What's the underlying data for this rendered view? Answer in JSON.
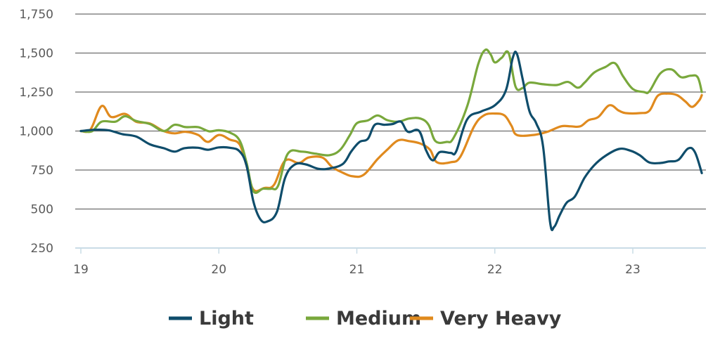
{
  "chart_data": {
    "type": "line",
    "title": "",
    "xlabel": "",
    "ylabel": "",
    "xlim": [
      19,
      23.52
    ],
    "ylim": [
      250,
      1750
    ],
    "yticks": [
      {
        "value": 1750,
        "label": "1,750"
      },
      {
        "value": 1500,
        "label": "1,500"
      },
      {
        "value": 1250,
        "label": "1,250"
      },
      {
        "value": 1000,
        "label": "1,000"
      },
      {
        "value": 750,
        "label": "750"
      },
      {
        "value": 500,
        "label": "500"
      },
      {
        "value": 250,
        "label": "250"
      }
    ],
    "xticks": [
      {
        "value": 19,
        "label": "19"
      },
      {
        "value": 20,
        "label": "20"
      },
      {
        "value": 21,
        "label": "21"
      },
      {
        "value": 22,
        "label": "22"
      },
      {
        "value": 23,
        "label": "23"
      }
    ],
    "grid": true,
    "legend_position": "bottom",
    "series": [
      {
        "name": "Light",
        "color": "#0f4d6b",
        "points": [
          [
            19.0,
            1000
          ],
          [
            19.1,
            1008
          ],
          [
            19.2,
            1005
          ],
          [
            19.3,
            980
          ],
          [
            19.4,
            965
          ],
          [
            19.5,
            915
          ],
          [
            19.6,
            890
          ],
          [
            19.68,
            868
          ],
          [
            19.75,
            890
          ],
          [
            19.85,
            893
          ],
          [
            19.92,
            880
          ],
          [
            20.0,
            895
          ],
          [
            20.08,
            893
          ],
          [
            20.15,
            870
          ],
          [
            20.2,
            780
          ],
          [
            20.25,
            550
          ],
          [
            20.3,
            435
          ],
          [
            20.35,
            420
          ],
          [
            20.42,
            480
          ],
          [
            20.48,
            700
          ],
          [
            20.55,
            785
          ],
          [
            20.63,
            786
          ],
          [
            20.72,
            758
          ],
          [
            20.8,
            760
          ],
          [
            20.9,
            790
          ],
          [
            20.96,
            870
          ],
          [
            21.02,
            930
          ],
          [
            21.08,
            950
          ],
          [
            21.13,
            1040
          ],
          [
            21.2,
            1040
          ],
          [
            21.26,
            1045
          ],
          [
            21.32,
            1060
          ],
          [
            21.37,
            995
          ],
          [
            21.45,
            1002
          ],
          [
            21.5,
            880
          ],
          [
            21.55,
            812
          ],
          [
            21.6,
            865
          ],
          [
            21.68,
            860
          ],
          [
            21.72,
            870
          ],
          [
            21.8,
            1075
          ],
          [
            21.9,
            1125
          ],
          [
            22.0,
            1165
          ],
          [
            22.08,
            1260
          ],
          [
            22.13,
            1470
          ],
          [
            22.16,
            1495
          ],
          [
            22.2,
            1340
          ],
          [
            22.25,
            1130
          ],
          [
            22.3,
            1050
          ],
          [
            22.35,
            900
          ],
          [
            22.4,
            420
          ],
          [
            22.43,
            385
          ],
          [
            22.47,
            460
          ],
          [
            22.52,
            540
          ],
          [
            22.58,
            580
          ],
          [
            22.65,
            700
          ],
          [
            22.72,
            780
          ],
          [
            22.8,
            840
          ],
          [
            22.9,
            885
          ],
          [
            22.98,
            875
          ],
          [
            23.05,
            845
          ],
          [
            23.12,
            798
          ],
          [
            23.2,
            795
          ],
          [
            23.26,
            805
          ],
          [
            23.33,
            815
          ],
          [
            23.4,
            888
          ],
          [
            23.45,
            865
          ],
          [
            23.5,
            730
          ]
        ]
      },
      {
        "name": "Medium",
        "color": "#79a83c",
        "points": [
          [
            19.0,
            1000
          ],
          [
            19.08,
            998
          ],
          [
            19.15,
            1060
          ],
          [
            19.25,
            1060
          ],
          [
            19.32,
            1095
          ],
          [
            19.4,
            1065
          ],
          [
            19.5,
            1045
          ],
          [
            19.6,
            1000
          ],
          [
            19.68,
            1040
          ],
          [
            19.76,
            1025
          ],
          [
            19.85,
            1025
          ],
          [
            19.93,
            998
          ],
          [
            20.0,
            1005
          ],
          [
            20.08,
            990
          ],
          [
            20.15,
            940
          ],
          [
            20.2,
            800
          ],
          [
            20.25,
            615
          ],
          [
            20.32,
            630
          ],
          [
            20.38,
            630
          ],
          [
            20.43,
            650
          ],
          [
            20.5,
            855
          ],
          [
            20.6,
            868
          ],
          [
            20.7,
            855
          ],
          [
            20.8,
            845
          ],
          [
            20.88,
            880
          ],
          [
            20.95,
            975
          ],
          [
            21.0,
            1050
          ],
          [
            21.08,
            1068
          ],
          [
            21.15,
            1100
          ],
          [
            21.22,
            1070
          ],
          [
            21.3,
            1060
          ],
          [
            21.38,
            1080
          ],
          [
            21.46,
            1080
          ],
          [
            21.52,
            1040
          ],
          [
            21.57,
            935
          ],
          [
            21.65,
            930
          ],
          [
            21.7,
            955
          ],
          [
            21.8,
            1160
          ],
          [
            21.88,
            1430
          ],
          [
            21.93,
            1520
          ],
          [
            21.97,
            1490
          ],
          [
            22.0,
            1440
          ],
          [
            22.05,
            1470
          ],
          [
            22.1,
            1500
          ],
          [
            22.15,
            1285
          ],
          [
            22.2,
            1275
          ],
          [
            22.25,
            1310
          ],
          [
            22.35,
            1300
          ],
          [
            22.45,
            1295
          ],
          [
            22.53,
            1315
          ],
          [
            22.6,
            1278
          ],
          [
            22.65,
            1310
          ],
          [
            22.72,
            1375
          ],
          [
            22.8,
            1410
          ],
          [
            22.87,
            1435
          ],
          [
            22.93,
            1350
          ],
          [
            23.0,
            1270
          ],
          [
            23.08,
            1250
          ],
          [
            23.12,
            1255
          ],
          [
            23.2,
            1370
          ],
          [
            23.28,
            1395
          ],
          [
            23.35,
            1345
          ],
          [
            23.42,
            1355
          ],
          [
            23.47,
            1345
          ],
          [
            23.5,
            1250
          ]
        ]
      },
      {
        "name": "Very Heavy",
        "color": "#e08a1e",
        "points": [
          [
            19.0,
            1000
          ],
          [
            19.07,
            1010
          ],
          [
            19.15,
            1160
          ],
          [
            19.22,
            1090
          ],
          [
            19.32,
            1110
          ],
          [
            19.4,
            1060
          ],
          [
            19.5,
            1048
          ],
          [
            19.6,
            1000
          ],
          [
            19.68,
            985
          ],
          [
            19.76,
            995
          ],
          [
            19.85,
            975
          ],
          [
            19.92,
            930
          ],
          [
            20.0,
            975
          ],
          [
            20.08,
            945
          ],
          [
            20.15,
            915
          ],
          [
            20.2,
            780
          ],
          [
            20.25,
            625
          ],
          [
            20.33,
            635
          ],
          [
            20.4,
            655
          ],
          [
            20.48,
            810
          ],
          [
            20.58,
            795
          ],
          [
            20.65,
            830
          ],
          [
            20.75,
            830
          ],
          [
            20.82,
            770
          ],
          [
            20.9,
            732
          ],
          [
            20.97,
            710
          ],
          [
            21.05,
            720
          ],
          [
            21.15,
            820
          ],
          [
            21.22,
            880
          ],
          [
            21.3,
            940
          ],
          [
            21.38,
            935
          ],
          [
            21.46,
            920
          ],
          [
            21.53,
            880
          ],
          [
            21.58,
            800
          ],
          [
            21.68,
            800
          ],
          [
            21.75,
            835
          ],
          [
            21.85,
            1030
          ],
          [
            21.92,
            1100
          ],
          [
            22.0,
            1112
          ],
          [
            22.07,
            1100
          ],
          [
            22.12,
            1035
          ],
          [
            22.16,
            975
          ],
          [
            22.28,
            975
          ],
          [
            22.38,
            995
          ],
          [
            22.48,
            1030
          ],
          [
            22.55,
            1030
          ],
          [
            22.62,
            1030
          ],
          [
            22.68,
            1070
          ],
          [
            22.75,
            1090
          ],
          [
            22.83,
            1165
          ],
          [
            22.9,
            1130
          ],
          [
            22.95,
            1115
          ],
          [
            23.05,
            1115
          ],
          [
            23.12,
            1130
          ],
          [
            23.18,
            1225
          ],
          [
            23.25,
            1240
          ],
          [
            23.32,
            1230
          ],
          [
            23.38,
            1190
          ],
          [
            23.43,
            1155
          ],
          [
            23.48,
            1195
          ],
          [
            23.5,
            1230
          ]
        ]
      }
    ]
  }
}
